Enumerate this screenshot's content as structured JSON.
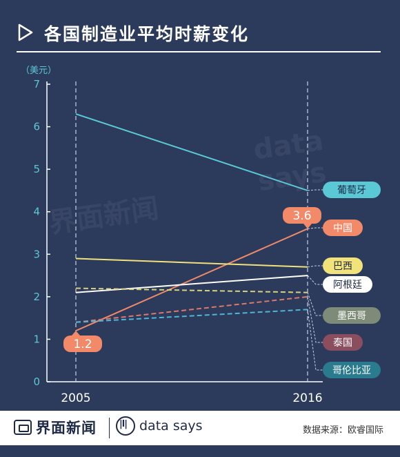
{
  "title": "各国制造业平均时薪变化",
  "footer": {
    "brand": "界面新闻",
    "brand2": "data says",
    "source": "数据来源：欧睿国际"
  },
  "watermarks": [
    "界面新闻",
    "data says"
  ],
  "chart_data": {
    "type": "line",
    "title": "各国制造业平均时薪变化",
    "ylabel": "（美元）",
    "x": [
      "2005",
      "2016"
    ],
    "yticks": [
      0,
      1,
      2,
      3,
      4,
      5,
      6,
      7
    ],
    "ylim": [
      0,
      7
    ],
    "series": [
      {
        "name": "葡萄牙",
        "values": [
          6.3,
          4.5
        ],
        "color": "#5bc8d6",
        "dashed": false,
        "label_bg": "#5bc8d6",
        "label_fg": "#1e2a45"
      },
      {
        "name": "中国",
        "values": [
          1.2,
          3.6
        ],
        "color": "#f28a6a",
        "dashed": false,
        "label_bg": "#f28a6a",
        "label_fg": "#ffffff"
      },
      {
        "name": "巴西",
        "values": [
          2.9,
          2.7
        ],
        "color": "#f2e27a",
        "dashed": false,
        "label_bg": "#f2e27a",
        "label_fg": "#1e2a45"
      },
      {
        "name": "阿根廷",
        "values": [
          2.1,
          2.5
        ],
        "color": "#ffffff",
        "dashed": false,
        "label_bg": "#ffffff",
        "label_fg": "#1e2a45"
      },
      {
        "name": "墨西哥",
        "values": [
          2.2,
          2.1
        ],
        "color": "#d8d27a",
        "dashed": true,
        "label_bg": "#7d8b78",
        "label_fg": "#ffffff"
      },
      {
        "name": "泰国",
        "values": [
          1.4,
          2.0
        ],
        "color": "#e0786a",
        "dashed": true,
        "label_bg": "#8b4e5e",
        "label_fg": "#ffffff"
      },
      {
        "name": "哥伦比亚",
        "values": [
          1.4,
          1.7
        ],
        "color": "#4fb6d6",
        "dashed": true,
        "label_bg": "#2a7b8d",
        "label_fg": "#ffffff"
      }
    ],
    "callouts": [
      {
        "series": "中国",
        "x": "2005",
        "value": "1.2"
      },
      {
        "series": "中国",
        "x": "2016",
        "value": "3.6"
      }
    ]
  }
}
